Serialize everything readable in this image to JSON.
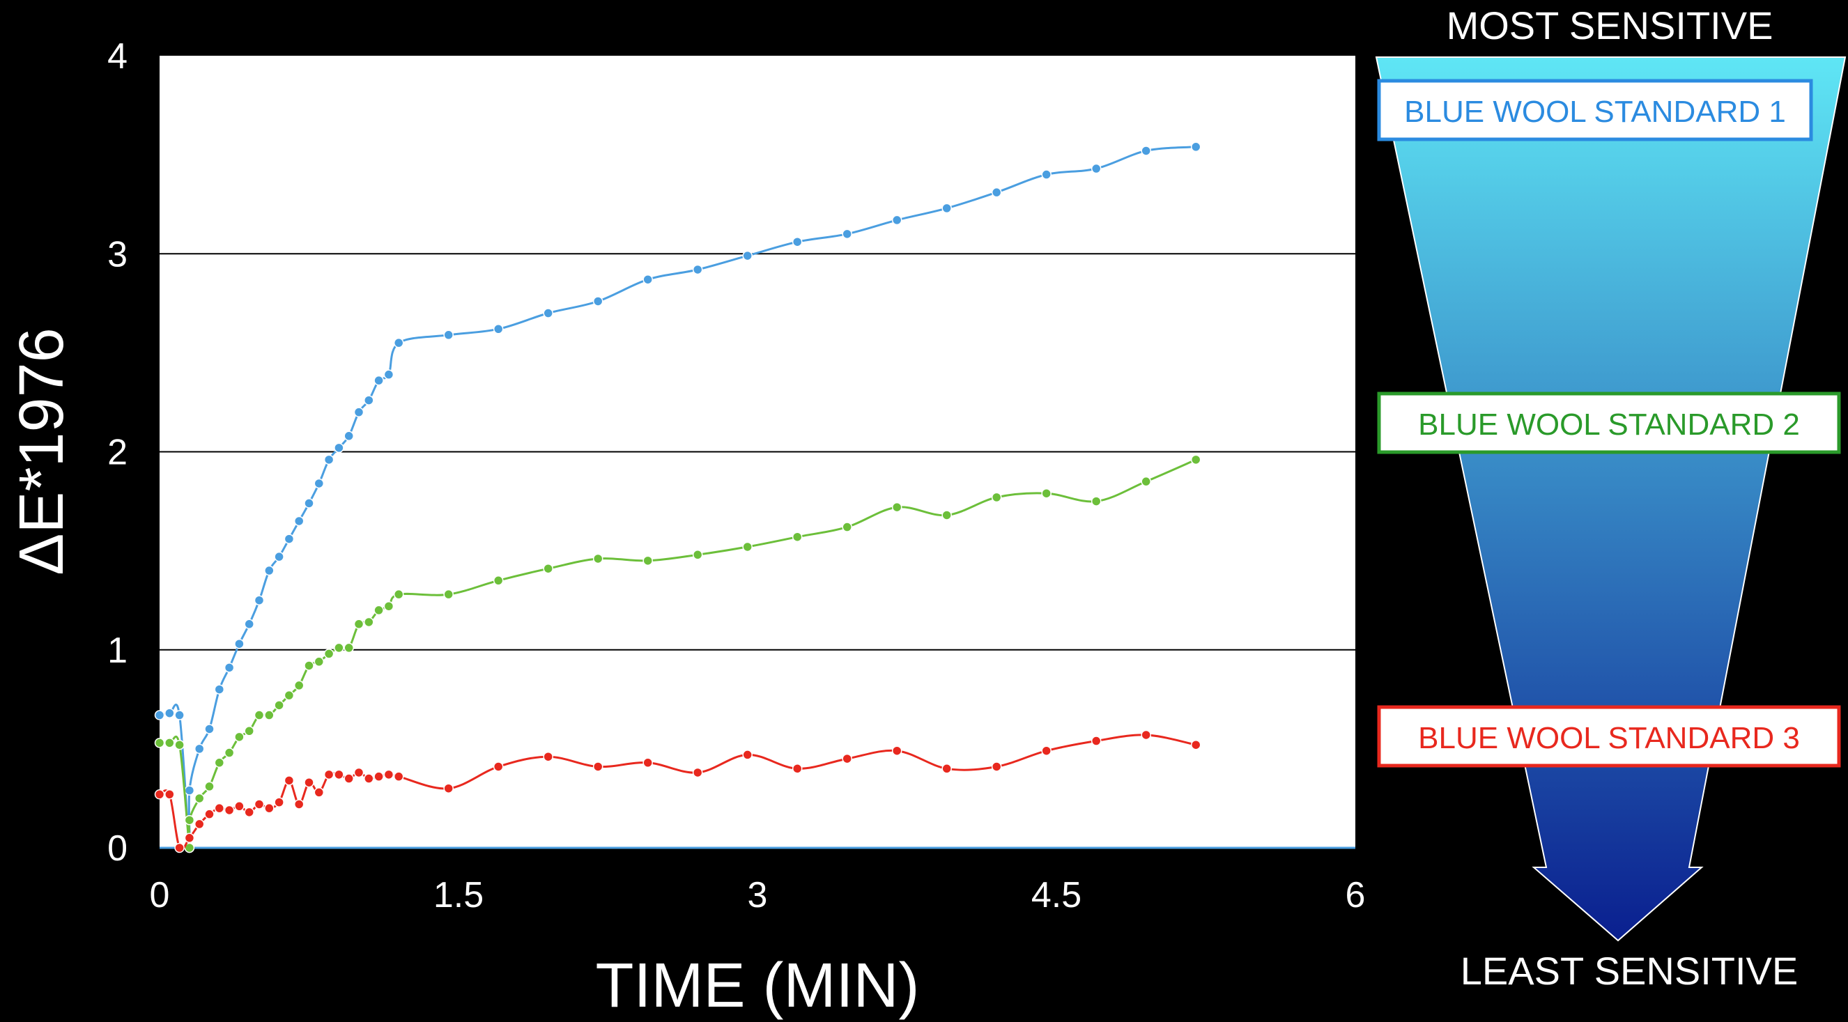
{
  "chart_data": {
    "type": "line",
    "xlabel": "TIME (MIN)",
    "ylabel": "ΔE*1976",
    "xlim": [
      0,
      6
    ],
    "ylim": [
      0,
      4
    ],
    "x_ticks": [
      "0",
      "1.5",
      "3",
      "4.5",
      "6"
    ],
    "y_ticks": [
      "0",
      "1",
      "2",
      "3",
      "4"
    ],
    "x_tick_values": [
      0,
      1.5,
      3,
      4.5,
      6
    ],
    "y_tick_values": [
      0,
      1,
      2,
      3,
      4
    ],
    "grid": "horizontal",
    "plot_background": "#ffffff",
    "series": [
      {
        "color": "#4a9ee0",
        "points": [
          [
            0,
            0.67
          ],
          [
            0.05,
            0.68
          ],
          [
            0.1,
            0.67
          ],
          [
            0.15,
            0.0
          ],
          [
            0.15,
            0.29
          ],
          [
            0.2,
            0.5
          ],
          [
            0.25,
            0.6
          ],
          [
            0.3,
            0.8
          ],
          [
            0.35,
            0.91
          ],
          [
            0.4,
            1.03
          ],
          [
            0.45,
            1.13
          ],
          [
            0.5,
            1.25
          ],
          [
            0.55,
            1.4
          ],
          [
            0.6,
            1.47
          ],
          [
            0.65,
            1.56
          ],
          [
            0.7,
            1.65
          ],
          [
            0.75,
            1.74
          ],
          [
            0.8,
            1.84
          ],
          [
            0.85,
            1.96
          ],
          [
            0.9,
            2.02
          ],
          [
            0.95,
            2.08
          ],
          [
            1.0,
            2.2
          ],
          [
            1.05,
            2.26
          ],
          [
            1.1,
            2.36
          ],
          [
            1.15,
            2.39
          ],
          [
            1.2,
            2.55
          ],
          [
            1.45,
            2.59
          ],
          [
            1.7,
            2.62
          ],
          [
            1.95,
            2.7
          ],
          [
            2.2,
            2.76
          ],
          [
            2.45,
            2.87
          ],
          [
            2.7,
            2.92
          ],
          [
            2.95,
            2.99
          ],
          [
            3.2,
            3.06
          ],
          [
            3.45,
            3.1
          ],
          [
            3.7,
            3.17
          ],
          [
            3.95,
            3.23
          ],
          [
            4.2,
            3.31
          ],
          [
            4.45,
            3.4
          ],
          [
            4.7,
            3.43
          ],
          [
            4.95,
            3.52
          ],
          [
            5.2,
            3.54
          ]
        ]
      },
      {
        "color": "#6cbf3a",
        "points": [
          [
            0,
            0.53
          ],
          [
            0.05,
            0.53
          ],
          [
            0.1,
            0.52
          ],
          [
            0.15,
            0.0
          ],
          [
            0.15,
            0.14
          ],
          [
            0.2,
            0.25
          ],
          [
            0.25,
            0.31
          ],
          [
            0.3,
            0.43
          ],
          [
            0.35,
            0.48
          ],
          [
            0.4,
            0.56
          ],
          [
            0.45,
            0.59
          ],
          [
            0.5,
            0.67
          ],
          [
            0.55,
            0.67
          ],
          [
            0.6,
            0.72
          ],
          [
            0.65,
            0.77
          ],
          [
            0.7,
            0.82
          ],
          [
            0.75,
            0.92
          ],
          [
            0.8,
            0.94
          ],
          [
            0.85,
            0.98
          ],
          [
            0.9,
            1.01
          ],
          [
            0.95,
            1.01
          ],
          [
            1.0,
            1.13
          ],
          [
            1.05,
            1.14
          ],
          [
            1.1,
            1.2
          ],
          [
            1.15,
            1.22
          ],
          [
            1.2,
            1.28
          ],
          [
            1.45,
            1.28
          ],
          [
            1.7,
            1.35
          ],
          [
            1.95,
            1.41
          ],
          [
            2.2,
            1.46
          ],
          [
            2.45,
            1.45
          ],
          [
            2.7,
            1.48
          ],
          [
            2.95,
            1.52
          ],
          [
            3.2,
            1.57
          ],
          [
            3.45,
            1.62
          ],
          [
            3.7,
            1.72
          ],
          [
            3.95,
            1.68
          ],
          [
            4.2,
            1.77
          ],
          [
            4.45,
            1.79
          ],
          [
            4.7,
            1.75
          ],
          [
            4.95,
            1.85
          ],
          [
            5.2,
            1.96
          ]
        ]
      },
      {
        "color": "#e8281e",
        "points": [
          [
            0,
            0.27
          ],
          [
            0.05,
            0.27
          ],
          [
            0.1,
            0.0
          ],
          [
            0.15,
            0.05
          ],
          [
            0.2,
            0.12
          ],
          [
            0.25,
            0.17
          ],
          [
            0.3,
            0.2
          ],
          [
            0.35,
            0.19
          ],
          [
            0.4,
            0.21
          ],
          [
            0.45,
            0.18
          ],
          [
            0.5,
            0.22
          ],
          [
            0.55,
            0.2
          ],
          [
            0.6,
            0.23
          ],
          [
            0.65,
            0.34
          ],
          [
            0.7,
            0.22
          ],
          [
            0.75,
            0.33
          ],
          [
            0.8,
            0.28
          ],
          [
            0.85,
            0.37
          ],
          [
            0.9,
            0.37
          ],
          [
            0.95,
            0.35
          ],
          [
            1.0,
            0.38
          ],
          [
            1.05,
            0.35
          ],
          [
            1.1,
            0.36
          ],
          [
            1.15,
            0.37
          ],
          [
            1.2,
            0.36
          ],
          [
            1.45,
            0.3
          ],
          [
            1.7,
            0.41
          ],
          [
            1.95,
            0.46
          ],
          [
            2.2,
            0.41
          ],
          [
            2.45,
            0.43
          ],
          [
            2.7,
            0.38
          ],
          [
            2.95,
            0.47
          ],
          [
            3.2,
            0.4
          ],
          [
            3.45,
            0.45
          ],
          [
            3.7,
            0.49
          ],
          [
            3.95,
            0.4
          ],
          [
            4.2,
            0.41
          ],
          [
            4.45,
            0.49
          ],
          [
            4.7,
            0.54
          ],
          [
            4.95,
            0.57
          ],
          [
            5.2,
            0.52
          ]
        ]
      }
    ]
  },
  "sensitivity_scale": {
    "top_label": "MOST SENSITIVE",
    "bottom_label": "LEAST SENSITIVE",
    "gradient_top": "#5fe6f5",
    "gradient_bottom": "#0a1f8f",
    "standards": [
      {
        "label": "BLUE WOOL STANDARD 1",
        "color": "#2b8be0"
      },
      {
        "label": "BLUE WOOL STANDARD 2",
        "color": "#2a9a2a"
      },
      {
        "label": "BLUE WOOL STANDARD 3",
        "color": "#e8281e"
      }
    ]
  }
}
